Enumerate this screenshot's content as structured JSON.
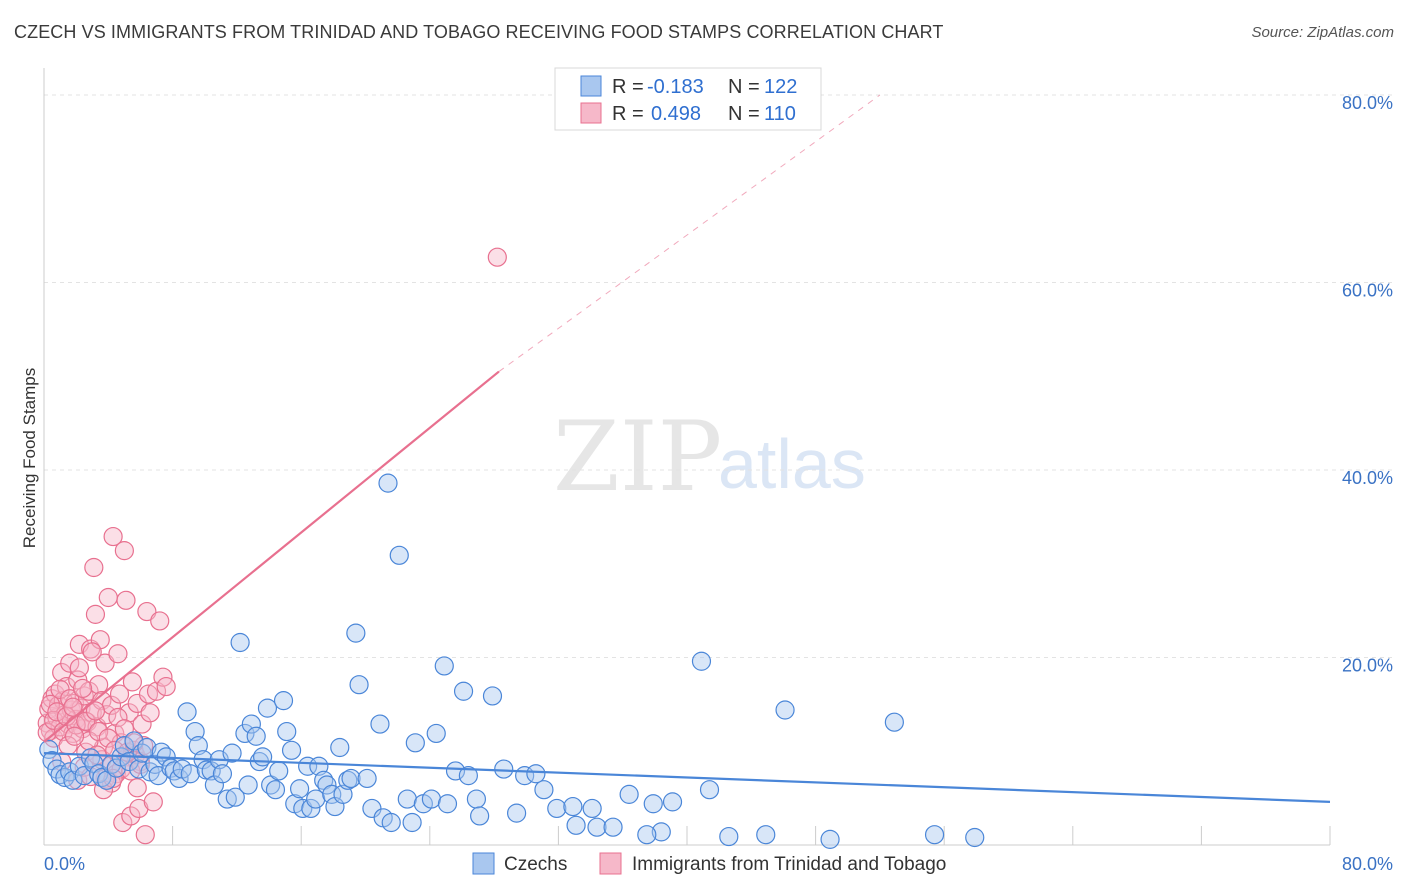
{
  "title": "CZECH VS IMMIGRANTS FROM TRINIDAD AND TOBAGO RECEIVING FOOD STAMPS CORRELATION CHART",
  "source": "Source: ZipAtlas.com",
  "colors": {
    "blue": "#4a86d8",
    "blue_fill": "#a9c7ef",
    "pink": "#e8708f",
    "pink_fill": "#f6b8c9",
    "axis_text": "#3a72c4"
  },
  "legend": {
    "rows": [
      {
        "r_label": "R =",
        "r_value": "-0.183",
        "n_label": "N =",
        "n_value": "122"
      },
      {
        "r_label": "R =",
        "r_value": "0.498",
        "n_label": "N =",
        "n_value": "110"
      }
    ]
  },
  "watermark": {
    "zip": "ZIP",
    "atlas": "atlas"
  },
  "chart_data": {
    "type": "scatter",
    "title": "CZECH VS IMMIGRANTS FROM TRINIDAD AND TOBAGO RECEIVING FOOD STAMPS CORRELATION CHART",
    "xlabel": "",
    "ylabel": "Receiving Food Stamps",
    "xlim": [
      0,
      80
    ],
    "ylim": [
      0,
      80
    ],
    "x_tick_labels": [
      "0.0%",
      "80.0%"
    ],
    "y_tick_labels": [
      "20.0%",
      "40.0%",
      "60.0%",
      "80.0%"
    ],
    "y_ticks": [
      20,
      40,
      60,
      80
    ],
    "legend_position": "bottom",
    "series": [
      {
        "name": "Czechs",
        "color": "#4a86d8",
        "r": -0.183,
        "n": 122,
        "trend": {
          "x": [
            0,
            80
          ],
          "y": [
            9.8,
            4.6
          ],
          "dashed_to": null
        },
        "points": [
          [
            0.3,
            10.2
          ],
          [
            0.5,
            9.0
          ],
          [
            0.8,
            8.1
          ],
          [
            1.0,
            7.5
          ],
          [
            1.3,
            7.2
          ],
          [
            1.6,
            7.8
          ],
          [
            1.8,
            6.9
          ],
          [
            2.2,
            8.4
          ],
          [
            2.5,
            7.4
          ],
          [
            2.9,
            9.3
          ],
          [
            3.1,
            8.7
          ],
          [
            3.4,
            7.6
          ],
          [
            3.6,
            7.2
          ],
          [
            3.9,
            6.9
          ],
          [
            4.2,
            8.6
          ],
          [
            4.5,
            8.2
          ],
          [
            4.8,
            9.4
          ],
          [
            5.0,
            10.6
          ],
          [
            5.3,
            8.9
          ],
          [
            5.6,
            11.1
          ],
          [
            5.9,
            8.1
          ],
          [
            6.1,
            9.8
          ],
          [
            6.4,
            10.4
          ],
          [
            6.6,
            7.8
          ],
          [
            6.9,
            8.6
          ],
          [
            7.1,
            7.4
          ],
          [
            7.3,
            9.9
          ],
          [
            7.6,
            9.4
          ],
          [
            7.9,
            8.2
          ],
          [
            8.1,
            7.9
          ],
          [
            8.4,
            7.1
          ],
          [
            8.6,
            8.1
          ],
          [
            8.9,
            14.2
          ],
          [
            9.1,
            7.6
          ],
          [
            9.4,
            12.1
          ],
          [
            9.6,
            10.6
          ],
          [
            9.9,
            9.1
          ],
          [
            10.1,
            8.0
          ],
          [
            10.4,
            7.9
          ],
          [
            10.6,
            6.4
          ],
          [
            10.9,
            9.1
          ],
          [
            11.1,
            7.6
          ],
          [
            11.4,
            4.9
          ],
          [
            11.7,
            9.8
          ],
          [
            11.9,
            5.1
          ],
          [
            12.2,
            21.6
          ],
          [
            12.5,
            11.9
          ],
          [
            12.7,
            6.4
          ],
          [
            12.9,
            12.9
          ],
          [
            13.2,
            11.6
          ],
          [
            13.4,
            8.9
          ],
          [
            13.6,
            9.4
          ],
          [
            13.9,
            14.6
          ],
          [
            14.1,
            6.4
          ],
          [
            14.4,
            5.9
          ],
          [
            14.6,
            7.9
          ],
          [
            14.9,
            15.4
          ],
          [
            15.1,
            12.1
          ],
          [
            15.4,
            10.1
          ],
          [
            15.6,
            4.4
          ],
          [
            15.9,
            6.0
          ],
          [
            16.1,
            3.9
          ],
          [
            16.4,
            8.4
          ],
          [
            16.6,
            3.9
          ],
          [
            16.9,
            4.9
          ],
          [
            17.1,
            8.4
          ],
          [
            17.4,
            6.9
          ],
          [
            17.6,
            6.4
          ],
          [
            17.9,
            5.4
          ],
          [
            18.1,
            4.1
          ],
          [
            18.4,
            10.4
          ],
          [
            18.6,
            5.4
          ],
          [
            18.9,
            6.9
          ],
          [
            19.1,
            7.1
          ],
          [
            19.4,
            22.6
          ],
          [
            19.6,
            17.1
          ],
          [
            20.1,
            7.1
          ],
          [
            20.4,
            3.9
          ],
          [
            20.9,
            12.9
          ],
          [
            21.1,
            2.9
          ],
          [
            21.4,
            38.6
          ],
          [
            21.6,
            2.4
          ],
          [
            22.1,
            30.9
          ],
          [
            22.6,
            4.9
          ],
          [
            22.9,
            2.4
          ],
          [
            23.1,
            10.9
          ],
          [
            23.6,
            4.4
          ],
          [
            24.1,
            4.9
          ],
          [
            24.4,
            11.9
          ],
          [
            24.9,
            19.1
          ],
          [
            25.1,
            4.4
          ],
          [
            25.6,
            7.9
          ],
          [
            26.1,
            16.4
          ],
          [
            26.4,
            7.4
          ],
          [
            26.9,
            4.9
          ],
          [
            27.1,
            3.1
          ],
          [
            27.9,
            15.9
          ],
          [
            28.6,
            8.1
          ],
          [
            29.4,
            3.4
          ],
          [
            29.9,
            7.4
          ],
          [
            31.1,
            5.9
          ],
          [
            31.9,
            3.9
          ],
          [
            32.9,
            4.1
          ],
          [
            33.1,
            2.1
          ],
          [
            34.1,
            3.9
          ],
          [
            34.4,
            1.9
          ],
          [
            35.4,
            1.9
          ],
          [
            36.4,
            5.4
          ],
          [
            37.9,
            4.4
          ],
          [
            38.4,
            1.4
          ],
          [
            39.1,
            4.6
          ],
          [
            40.9,
            19.6
          ],
          [
            41.4,
            5.9
          ],
          [
            42.6,
            0.9
          ],
          [
            44.9,
            1.1
          ],
          [
            46.1,
            14.4
          ],
          [
            48.9,
            0.6
          ],
          [
            52.9,
            13.1
          ],
          [
            55.4,
            1.1
          ],
          [
            57.9,
            0.8
          ],
          [
            37.5,
            1.1
          ],
          [
            30.6,
            7.6
          ]
        ]
      },
      {
        "name": "Immigrants from Trinidad and Tobago",
        "color": "#e8708f",
        "r": 0.498,
        "n": 110,
        "trend": {
          "x": [
            0,
            28.3
          ],
          "y": [
            11.0,
            50.5
          ],
          "dashed_to": {
            "x": 52,
            "y": 80
          }
        },
        "points": [
          [
            0.2,
            13.0
          ],
          [
            0.3,
            14.5
          ],
          [
            0.4,
            12.2
          ],
          [
            0.5,
            15.6
          ],
          [
            0.6,
            11.4
          ],
          [
            0.7,
            16.1
          ],
          [
            0.8,
            13.6
          ],
          [
            0.9,
            14.9
          ],
          [
            1.0,
            12.6
          ],
          [
            1.1,
            18.4
          ],
          [
            1.2,
            15.4
          ],
          [
            1.3,
            13.9
          ],
          [
            1.4,
            16.9
          ],
          [
            1.5,
            12.9
          ],
          [
            1.6,
            19.4
          ],
          [
            1.7,
            14.4
          ],
          [
            1.8,
            11.9
          ],
          [
            1.9,
            15.1
          ],
          [
            2.0,
            13.4
          ],
          [
            2.1,
            17.6
          ],
          [
            2.2,
            21.4
          ],
          [
            2.3,
            14.6
          ],
          [
            2.4,
            12.4
          ],
          [
            2.5,
            15.9
          ],
          [
            2.6,
            9.9
          ],
          [
            2.7,
            13.1
          ],
          [
            2.8,
            16.4
          ],
          [
            2.9,
            20.9
          ],
          [
            3.0,
            14.1
          ],
          [
            3.1,
            29.6
          ],
          [
            3.2,
            24.6
          ],
          [
            3.3,
            12.6
          ],
          [
            3.4,
            17.1
          ],
          [
            3.5,
            21.9
          ],
          [
            3.6,
            15.4
          ],
          [
            3.7,
            10.4
          ],
          [
            3.8,
            19.4
          ],
          [
            3.9,
            13.9
          ],
          [
            4.0,
            26.4
          ],
          [
            4.1,
            8.4
          ],
          [
            4.2,
            14.9
          ],
          [
            4.3,
            32.9
          ],
          [
            4.4,
            11.9
          ],
          [
            4.5,
            7.6
          ],
          [
            4.6,
            20.4
          ],
          [
            4.7,
            16.1
          ],
          [
            4.8,
            10.9
          ],
          [
            4.9,
            2.4
          ],
          [
            5.0,
            31.4
          ],
          [
            5.1,
            26.1
          ],
          [
            5.2,
            9.4
          ],
          [
            5.3,
            14.1
          ],
          [
            5.4,
            3.1
          ],
          [
            5.5,
            17.4
          ],
          [
            5.6,
            10.1
          ],
          [
            5.7,
            9.6
          ],
          [
            5.8,
            15.1
          ],
          [
            5.9,
            3.9
          ],
          [
            6.0,
            8.9
          ],
          [
            6.1,
            12.9
          ],
          [
            6.2,
            10.6
          ],
          [
            6.3,
            1.1
          ],
          [
            6.4,
            24.9
          ],
          [
            6.5,
            16.1
          ],
          [
            6.6,
            14.1
          ],
          [
            6.8,
            4.6
          ],
          [
            7.0,
            16.4
          ],
          [
            7.2,
            23.9
          ],
          [
            7.4,
            17.9
          ],
          [
            7.6,
            16.9
          ],
          [
            0.2,
            12.0
          ],
          [
            0.4,
            15.0
          ],
          [
            0.6,
            13.3
          ],
          [
            0.8,
            14.2
          ],
          [
            1.0,
            16.6
          ],
          [
            1.2,
            12.1
          ],
          [
            1.4,
            13.7
          ],
          [
            1.6,
            15.6
          ],
          [
            1.8,
            14.7
          ],
          [
            2.0,
            12.8
          ],
          [
            2.2,
            18.9
          ],
          [
            2.4,
            16.7
          ],
          [
            2.6,
            13.2
          ],
          [
            2.8,
            11.1
          ],
          [
            3.0,
            20.6
          ],
          [
            3.2,
            14.3
          ],
          [
            3.4,
            12.1
          ],
          [
            3.6,
            9.1
          ],
          [
            3.8,
            7.1
          ],
          [
            4.0,
            11.4
          ],
          [
            4.2,
            6.6
          ],
          [
            4.4,
            10.1
          ],
          [
            4.6,
            13.6
          ],
          [
            4.8,
            8.1
          ],
          [
            5.0,
            12.4
          ],
          [
            5.2,
            9.9
          ],
          [
            5.4,
            7.9
          ],
          [
            5.6,
            10.9
          ],
          [
            5.8,
            6.1
          ],
          [
            6.0,
            8.6
          ],
          [
            28.2,
            62.7
          ],
          [
            1.1,
            8.9
          ],
          [
            1.5,
            10.6
          ],
          [
            2.1,
            6.9
          ],
          [
            2.5,
            8.3
          ],
          [
            2.9,
            7.3
          ],
          [
            3.3,
            9.6
          ],
          [
            3.7,
            5.9
          ],
          [
            4.3,
            7.1
          ],
          [
            1.9,
            11.6
          ]
        ]
      }
    ]
  }
}
